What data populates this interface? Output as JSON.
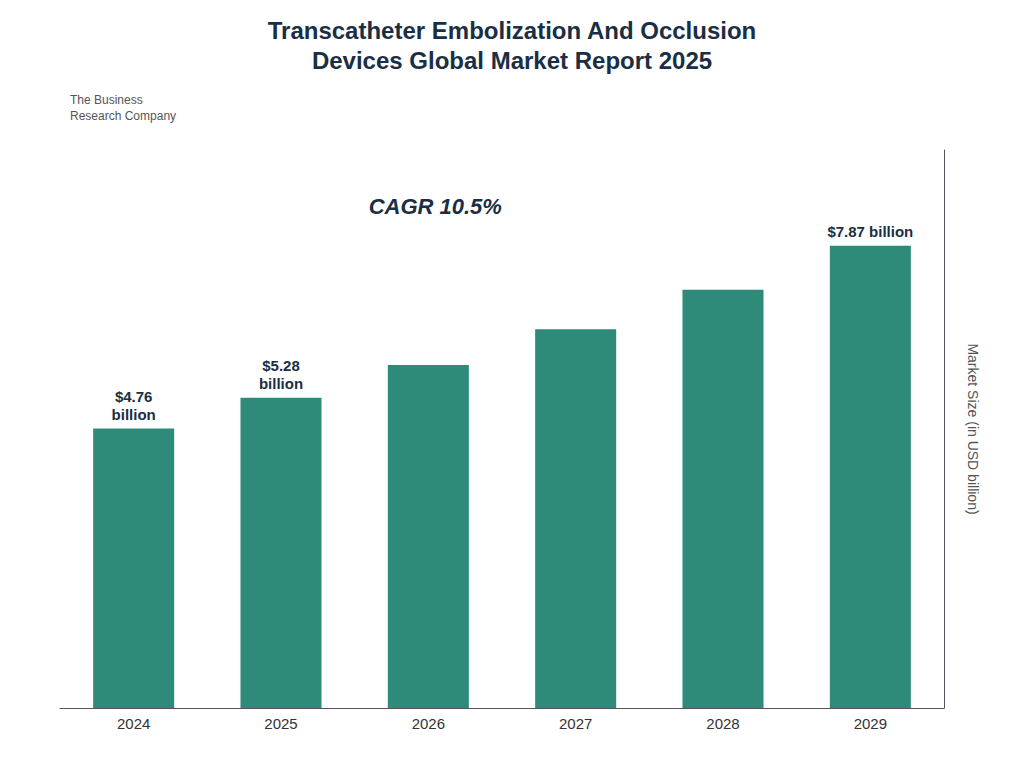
{
  "chart_data": {
    "type": "bar",
    "title": "Transcatheter Embolization And Occlusion\nDevices Global Market Report 2025",
    "ylabel": "Market Size (in USD billion)",
    "categories": [
      "2024",
      "2025",
      "2026",
      "2027",
      "2028",
      "2029"
    ],
    "values": [
      4.76,
      5.28,
      5.84,
      6.45,
      7.12,
      7.87
    ],
    "value_labels": [
      "$4.76\nbillion",
      "$5.28\nbillion",
      null,
      null,
      null,
      "$7.87 billion"
    ],
    "data_labels": true,
    "color": "#2e8b7a",
    "ylim": [
      0,
      9.5
    ],
    "yticks": [],
    "tick_labels": "x",
    "grid": false,
    "annotations": [
      "CAGR 10.5%",
      "The Business\nResearch Company"
    ]
  }
}
